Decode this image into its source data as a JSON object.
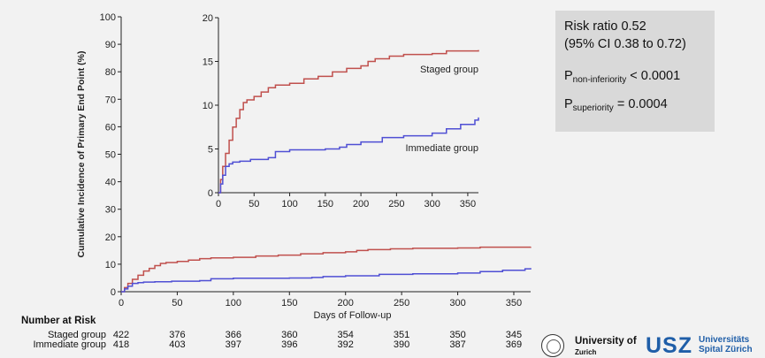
{
  "chart_data": [
    {
      "type": "line",
      "name": "main",
      "xlabel": "Days of Follow-up",
      "ylabel": "Cumulative Incidence of Primary End Point (%)",
      "xlim": [
        0,
        365
      ],
      "ylim": [
        0,
        100
      ],
      "x_ticks": [
        0,
        50,
        100,
        150,
        200,
        250,
        300,
        350
      ],
      "y_ticks": [
        0,
        10,
        20,
        30,
        40,
        50,
        60,
        70,
        80,
        90,
        100
      ],
      "series": [
        {
          "color": "#c0504d",
          "points": [
            [
              0,
              0
            ],
            [
              3,
              1.5
            ],
            [
              6,
              3
            ],
            [
              10,
              4.5
            ],
            [
              15,
              6
            ],
            [
              20,
              7.5
            ],
            [
              25,
              8.5
            ],
            [
              30,
              9.5
            ],
            [
              35,
              10.3
            ],
            [
              40,
              10.6
            ],
            [
              50,
              11
            ],
            [
              60,
              11.5
            ],
            [
              70,
              12
            ],
            [
              80,
              12.3
            ],
            [
              100,
              12.5
            ],
            [
              120,
              13
            ],
            [
              140,
              13.3
            ],
            [
              160,
              13.8
            ],
            [
              180,
              14.2
            ],
            [
              200,
              14.5
            ],
            [
              210,
              15
            ],
            [
              220,
              15.3
            ],
            [
              240,
              15.6
            ],
            [
              260,
              15.8
            ],
            [
              300,
              15.9
            ],
            [
              320,
              16.2
            ],
            [
              365,
              16.3
            ]
          ]
        },
        {
          "color": "#4f4fd4",
          "points": [
            [
              0,
              0
            ],
            [
              3,
              1
            ],
            [
              6,
              2
            ],
            [
              10,
              3
            ],
            [
              15,
              3.3
            ],
            [
              20,
              3.5
            ],
            [
              30,
              3.6
            ],
            [
              45,
              3.8
            ],
            [
              70,
              4
            ],
            [
              80,
              4.7
            ],
            [
              100,
              4.9
            ],
            [
              150,
              5
            ],
            [
              170,
              5.2
            ],
            [
              180,
              5.5
            ],
            [
              200,
              5.8
            ],
            [
              230,
              6.3
            ],
            [
              260,
              6.5
            ],
            [
              300,
              6.8
            ],
            [
              320,
              7.3
            ],
            [
              340,
              7.8
            ],
            [
              360,
              8.3
            ],
            [
              365,
              8.6
            ]
          ]
        }
      ]
    },
    {
      "type": "line",
      "name": "inset",
      "xlim": [
        0,
        365
      ],
      "ylim": [
        0,
        20
      ],
      "x_ticks": [
        0,
        50,
        100,
        150,
        200,
        250,
        300,
        350
      ],
      "y_ticks": [
        0,
        5,
        10,
        15,
        20
      ],
      "series": [
        {
          "name": "Staged group",
          "color": "#c0504d",
          "points": [
            [
              0,
              0
            ],
            [
              3,
              1.5
            ],
            [
              6,
              3
            ],
            [
              10,
              4.5
            ],
            [
              15,
              6
            ],
            [
              20,
              7.5
            ],
            [
              25,
              8.5
            ],
            [
              30,
              9.5
            ],
            [
              35,
              10.3
            ],
            [
              40,
              10.6
            ],
            [
              50,
              11
            ],
            [
              60,
              11.5
            ],
            [
              70,
              12
            ],
            [
              80,
              12.3
            ],
            [
              100,
              12.5
            ],
            [
              120,
              13
            ],
            [
              140,
              13.3
            ],
            [
              160,
              13.8
            ],
            [
              180,
              14.2
            ],
            [
              200,
              14.5
            ],
            [
              210,
              15
            ],
            [
              220,
              15.3
            ],
            [
              240,
              15.6
            ],
            [
              260,
              15.8
            ],
            [
              300,
              15.9
            ],
            [
              320,
              16.2
            ],
            [
              365,
              16.3
            ]
          ]
        },
        {
          "name": "Immediate group",
          "color": "#4f4fd4",
          "points": [
            [
              0,
              0
            ],
            [
              3,
              1
            ],
            [
              6,
              2
            ],
            [
              10,
              3
            ],
            [
              15,
              3.3
            ],
            [
              20,
              3.5
            ],
            [
              30,
              3.6
            ],
            [
              45,
              3.8
            ],
            [
              70,
              4
            ],
            [
              80,
              4.7
            ],
            [
              100,
              4.9
            ],
            [
              150,
              5
            ],
            [
              170,
              5.2
            ],
            [
              180,
              5.5
            ],
            [
              200,
              5.8
            ],
            [
              230,
              6.3
            ],
            [
              260,
              6.5
            ],
            [
              300,
              6.8
            ],
            [
              320,
              7.3
            ],
            [
              340,
              7.8
            ],
            [
              360,
              8.3
            ],
            [
              365,
              8.6
            ]
          ]
        }
      ]
    }
  ],
  "stats": {
    "line1": "Risk ratio 0.52",
    "line2": "(95% CI 0.38 to 0.72)",
    "p_noninf_sub": "non-inferiority",
    "p_noninf_value": "< 0.0001",
    "p_sup_sub": "superiority",
    "p_sup_value": "= 0.0004",
    "p_letter": "P"
  },
  "risk_table": {
    "title": "Number at Risk",
    "days": [
      0,
      50,
      100,
      150,
      200,
      250,
      300,
      350
    ],
    "rows": [
      {
        "label": "Staged group",
        "values": [
          "422",
          "376",
          "366",
          "360",
          "354",
          "351",
          "350",
          "345"
        ]
      },
      {
        "label": "Immediate group",
        "values": [
          "418",
          "403",
          "397",
          "396",
          "392",
          "390",
          "387",
          "369"
        ]
      }
    ]
  },
  "logos": {
    "uni_name": "University of",
    "uni_city": "Zurich",
    "usz_mark": "USZ",
    "usz_line1": "Universitäts",
    "usz_line2": "Spital Zürich"
  }
}
